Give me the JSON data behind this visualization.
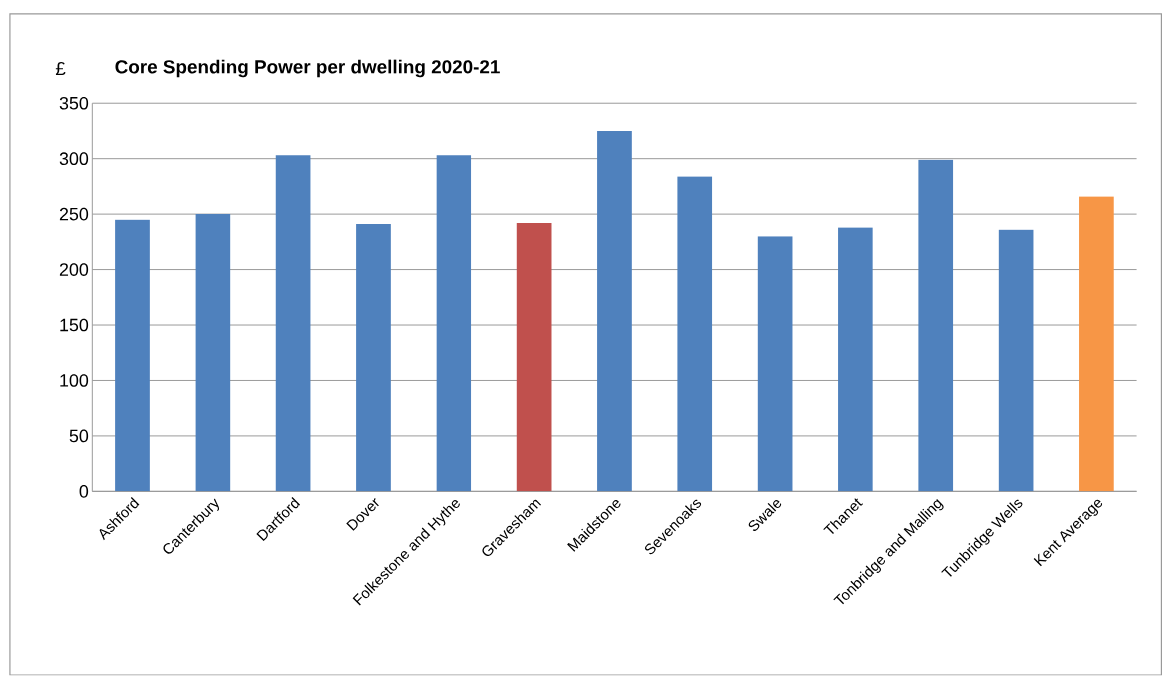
{
  "chart_data": {
    "type": "bar",
    "title": "Core Spending Power per dwelling 2020-21",
    "ylabel": "£",
    "categories": [
      "Ashford",
      "Canterbury",
      "Dartford",
      "Dover",
      "Folkestone and Hythe",
      "Gravesham",
      "Maidstone",
      "Sevenoaks",
      "Swale",
      "Thanet",
      "Tonbridge and Malling",
      "Tunbridge Wells",
      "Kent Average"
    ],
    "values": [
      245,
      250,
      303,
      241,
      303,
      242,
      325,
      284,
      230,
      238,
      299,
      236,
      266
    ],
    "colors": [
      "#4f81bd",
      "#4f81bd",
      "#4f81bd",
      "#4f81bd",
      "#4f81bd",
      "#c0504d",
      "#4f81bd",
      "#4f81bd",
      "#4f81bd",
      "#4f81bd",
      "#4f81bd",
      "#4f81bd",
      "#f79646"
    ],
    "ylim": [
      0,
      350
    ],
    "yticks": [
      0,
      50,
      100,
      150,
      200,
      250,
      300,
      350
    ],
    "grid": "y"
  }
}
